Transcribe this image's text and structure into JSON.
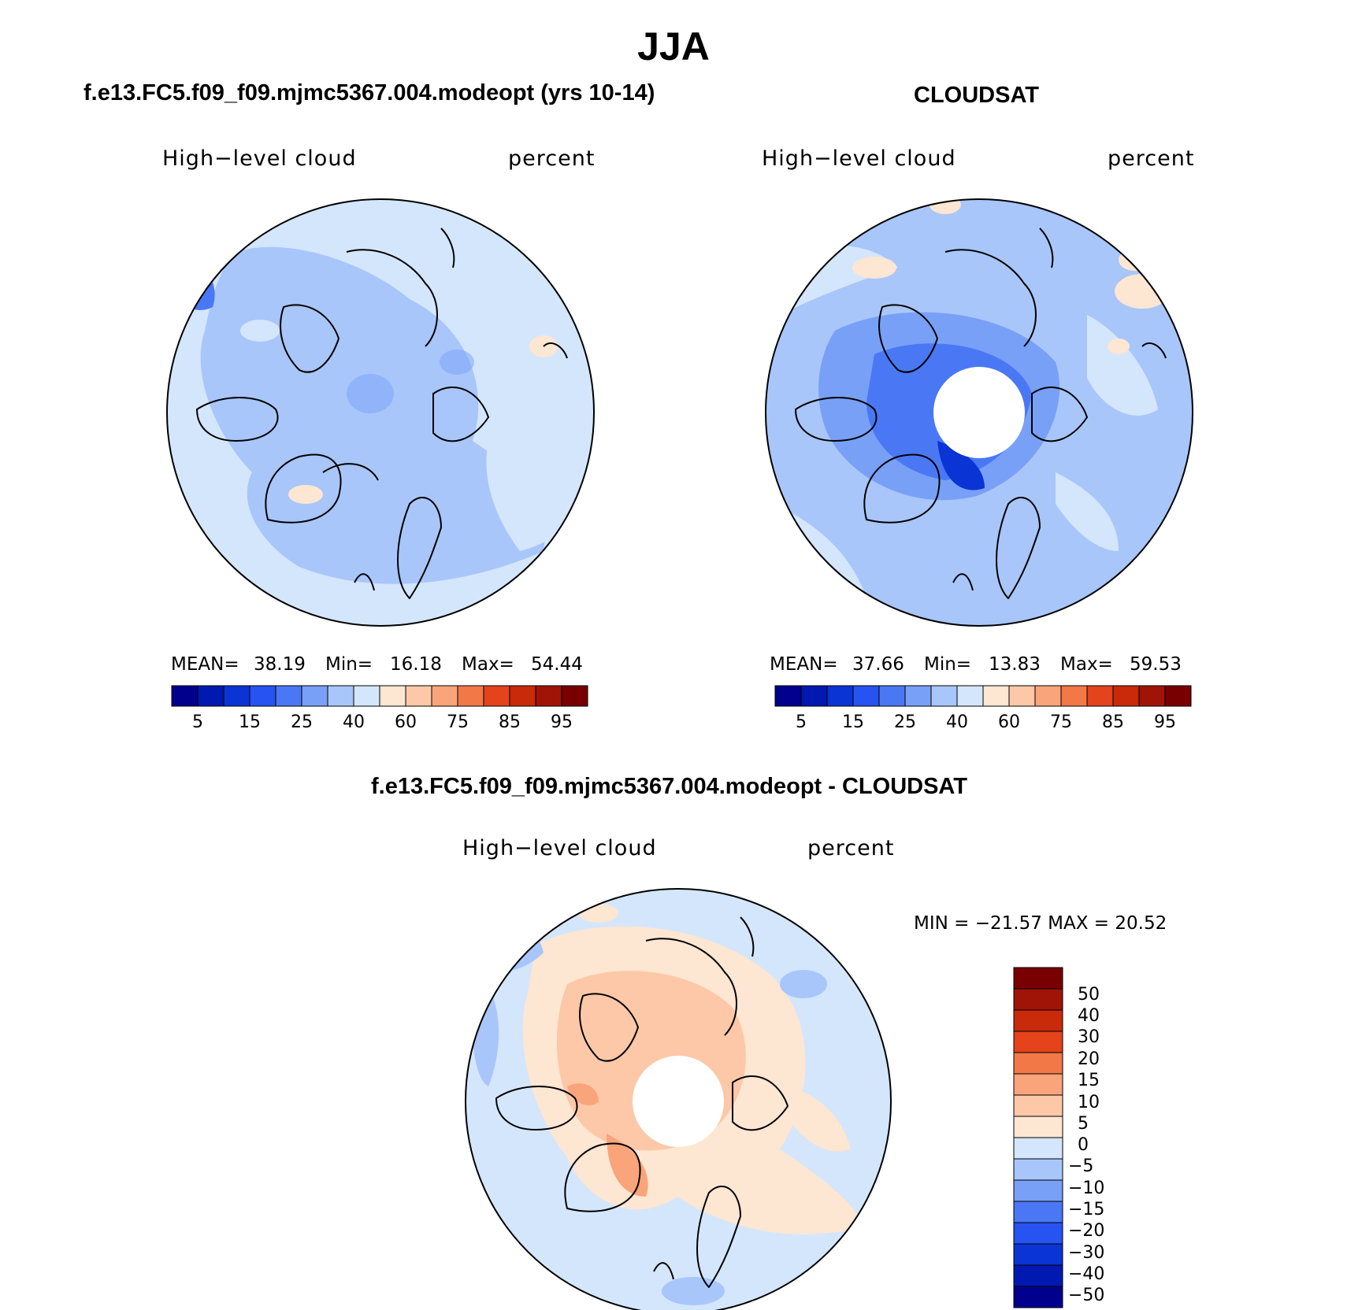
{
  "figure": {
    "title": "JJA"
  },
  "panels": [
    {
      "title": "f.e13.FC5.f09_f09.mjmc5367.004.modeopt (yrs 10-14)",
      "variable": "High−level cloud",
      "units": "percent",
      "stats": {
        "mean_label": "MEAN=",
        "mean": "38.19",
        "min_label": "Min=",
        "min": "16.18",
        "max_label": "Max=",
        "max": "54.44"
      }
    },
    {
      "title": "CLOUDSAT",
      "variable": "High−level cloud",
      "units": "percent",
      "stats": {
        "mean_label": "MEAN=",
        "mean": "37.66",
        "min_label": "Min=",
        "min": "13.83",
        "max_label": "Max=",
        "max": "59.53"
      }
    },
    {
      "title": "f.e13.FC5.f09_f09.mjmc5367.004.modeopt - CLOUDSAT",
      "variable": "High−level cloud",
      "units": "percent",
      "stats": {
        "text": "MIN = −21.57 MAX =   20.52"
      }
    }
  ],
  "colorbar_top": {
    "colors": [
      "#00008c",
      "#0019b0",
      "#0a34d4",
      "#2653f2",
      "#4a78f5",
      "#78a0f7",
      "#a8c6fa",
      "#d4e6fc",
      "#fde6d2",
      "#fcc8a8",
      "#f9a47a",
      "#f27848",
      "#e4431c",
      "#c82a0a",
      "#a01408",
      "#780000"
    ],
    "tick_labels": [
      "5",
      "15",
      "25",
      "40",
      "60",
      "75",
      "85",
      "95"
    ]
  },
  "colorbar_diff": {
    "colors": [
      "#780000",
      "#a01408",
      "#c82a0a",
      "#e4431c",
      "#f27848",
      "#f9a47a",
      "#fcc8a8",
      "#fde6d2",
      "#d4e6fc",
      "#a8c6fa",
      "#78a0f7",
      "#4a78f5",
      "#2653f2",
      "#0a34d4",
      "#0019b0",
      "#00008c"
    ],
    "tick_labels": [
      "50",
      "40",
      "30",
      "20",
      "15",
      "10",
      "5",
      "0",
      "−5",
      "−10",
      "−15",
      "−20",
      "−30",
      "−40",
      "−50"
    ]
  }
}
